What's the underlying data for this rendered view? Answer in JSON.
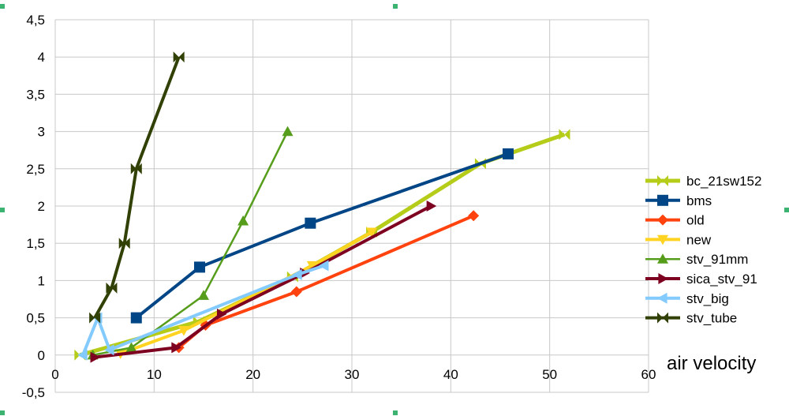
{
  "chart_data": {
    "type": "scatter",
    "xlabel": "air velocity",
    "ylabel": "",
    "xlim": [
      0,
      60
    ],
    "ylim": [
      -0.5,
      4.5
    ],
    "x_ticks": [
      "0",
      "10",
      "20",
      "30",
      "40",
      "50",
      "60"
    ],
    "y_ticks": [
      "4,5",
      "4",
      "3,5",
      "3",
      "2,5",
      "2",
      "1,5",
      "1",
      "0,5",
      "0",
      "-0,5"
    ],
    "grid": "horizontal and vertical",
    "legend_position": "right",
    "series": [
      {
        "name": "bc_21sw152",
        "color": "#b5cc18",
        "marker": "hourglass",
        "width": 5,
        "points": [
          [
            2.5,
            0
          ],
          [
            14.5,
            0.45
          ],
          [
            24,
            1.05
          ],
          [
            32,
            1.65
          ],
          [
            43,
            2.57
          ],
          [
            51.5,
            2.96
          ]
        ]
      },
      {
        "name": "bms",
        "color": "#004586",
        "marker": "square",
        "width": 4,
        "points": [
          [
            8.2,
            0.5
          ],
          [
            14.6,
            1.18
          ],
          [
            25.8,
            1.77
          ],
          [
            45.8,
            2.7
          ]
        ]
      },
      {
        "name": "old",
        "color": "#ff420e",
        "marker": "diamond",
        "width": 4,
        "points": [
          [
            12.5,
            0.1
          ],
          [
            15.2,
            0.4
          ],
          [
            24.4,
            0.85
          ],
          [
            42.3,
            1.87
          ]
        ]
      },
      {
        "name": "new",
        "color": "#ffd320",
        "marker": "triangle-down",
        "width": 4,
        "points": [
          [
            6.6,
            0.02
          ],
          [
            13,
            0.33
          ],
          [
            26,
            1.2
          ],
          [
            32,
            1.65
          ]
        ]
      },
      {
        "name": "stv_91mm",
        "color": "#579d1c",
        "marker": "triangle-up",
        "width": 2.5,
        "points": [
          [
            3.8,
            0
          ],
          [
            7.7,
            0.1
          ],
          [
            15,
            0.8
          ],
          [
            19,
            1.8
          ],
          [
            23.5,
            3.0
          ]
        ]
      },
      {
        "name": "sica_stv_91",
        "color": "#7e0021",
        "marker": "triangle-right",
        "width": 4,
        "points": [
          [
            4,
            -0.03
          ],
          [
            12.2,
            0.1
          ],
          [
            16.8,
            0.55
          ],
          [
            25.2,
            1.1
          ],
          [
            38,
            2.0
          ]
        ]
      },
      {
        "name": "stv_big",
        "color": "#83caff",
        "marker": "triangle-left",
        "width": 4,
        "points": [
          [
            2.8,
            0
          ],
          [
            4.3,
            0.5
          ],
          [
            5.5,
            0.07
          ],
          [
            24.5,
            1.08
          ],
          [
            27.2,
            1.2
          ]
        ]
      },
      {
        "name": "stv_tube",
        "color": "#314004",
        "marker": "hourglass",
        "width": 4,
        "points": [
          [
            4,
            0.5
          ],
          [
            5.7,
            0.9
          ],
          [
            7,
            1.5
          ],
          [
            8.2,
            2.5
          ],
          [
            12.5,
            4.0
          ]
        ]
      }
    ]
  }
}
